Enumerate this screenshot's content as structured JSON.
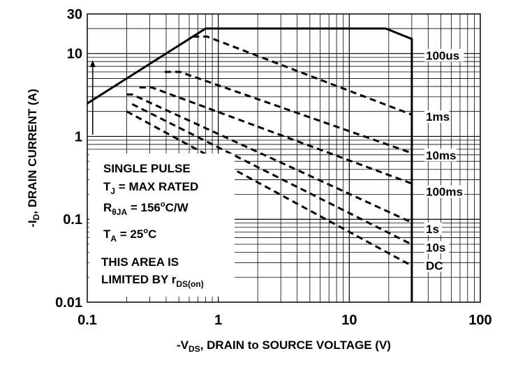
{
  "chart_data": {
    "type": "line",
    "title": "",
    "x_scale": "log",
    "y_scale": "log",
    "xlim": [
      0.1,
      100
    ],
    "ylim": [
      0.01,
      30
    ],
    "grid": true,
    "x_ticks": [
      "0.1",
      "1",
      "10",
      "100"
    ],
    "y_ticks": [
      "0.01",
      "0.1",
      "1",
      "10",
      "30"
    ],
    "xlabel": {
      "pre": "-V",
      "sub": "DS",
      "post": ", DRAIN to SOURCE VOLTAGE (V)"
    },
    "ylabel": {
      "pre": "-I",
      "sub": "D",
      "post": ", DRAIN CURRENT (A)"
    },
    "annotation": {
      "line1": "SINGLE PULSE",
      "line2": {
        "pre": "T",
        "sub": "J",
        "post": " = MAX RATED"
      },
      "line3": {
        "pre": "R",
        "sub": "θJA",
        "mid": " = 156",
        "sup": "o",
        "post": "C/W"
      },
      "line4": {
        "pre": "T",
        "sub": "A",
        "mid": " = 25",
        "sup": "o",
        "post": "C"
      },
      "line5": "THIS AREA IS",
      "line6": {
        "pre": "LIMITED BY r",
        "sub": "DS(on)"
      }
    },
    "series": [
      {
        "name": "100us",
        "style": "solid",
        "points": [
          [
            0.1,
            2.5
          ],
          [
            0.8,
            20
          ],
          [
            19,
            20
          ],
          [
            30,
            15
          ],
          [
            30,
            0.01
          ]
        ]
      },
      {
        "name": "1ms",
        "style": "dashed",
        "points": [
          [
            0.64,
            16
          ],
          [
            0.82,
            16
          ],
          [
            30,
            1.83
          ]
        ]
      },
      {
        "name": "10ms",
        "style": "dashed",
        "points": [
          [
            0.39,
            6.0
          ],
          [
            0.51,
            6.0
          ],
          [
            30,
            0.63
          ]
        ]
      },
      {
        "name": "100ms",
        "style": "dashed",
        "points": [
          [
            0.25,
            3.9
          ],
          [
            0.31,
            3.9
          ],
          [
            30,
            0.27
          ]
        ]
      },
      {
        "name": "1s",
        "style": "dashed",
        "points": [
          [
            0.2,
            3.2
          ],
          [
            0.22,
            3.2
          ],
          [
            30,
            0.0915
          ]
        ]
      },
      {
        "name": "10s",
        "style": "dashed",
        "points": [
          [
            0.22,
            2.45
          ],
          [
            30,
            0.0497
          ]
        ]
      },
      {
        "name": "DC",
        "style": "dashed",
        "points": [
          [
            0.2,
            2.0
          ],
          [
            30,
            0.0275
          ]
        ]
      }
    ],
    "series_labels": [
      {
        "series": "100us",
        "y": 8.8
      },
      {
        "series": "1ms",
        "y": 1.6
      },
      {
        "series": "10ms",
        "y": 0.55
      },
      {
        "series": "100ms",
        "y": 0.2
      },
      {
        "series": "1s",
        "y": 0.071
      },
      {
        "series": "10s",
        "y": 0.0425
      },
      {
        "series": "DC",
        "y": 0.0255
      }
    ],
    "arrow": {
      "x": 0.11,
      "y_from": 1.05,
      "y_to": 8.0
    }
  }
}
